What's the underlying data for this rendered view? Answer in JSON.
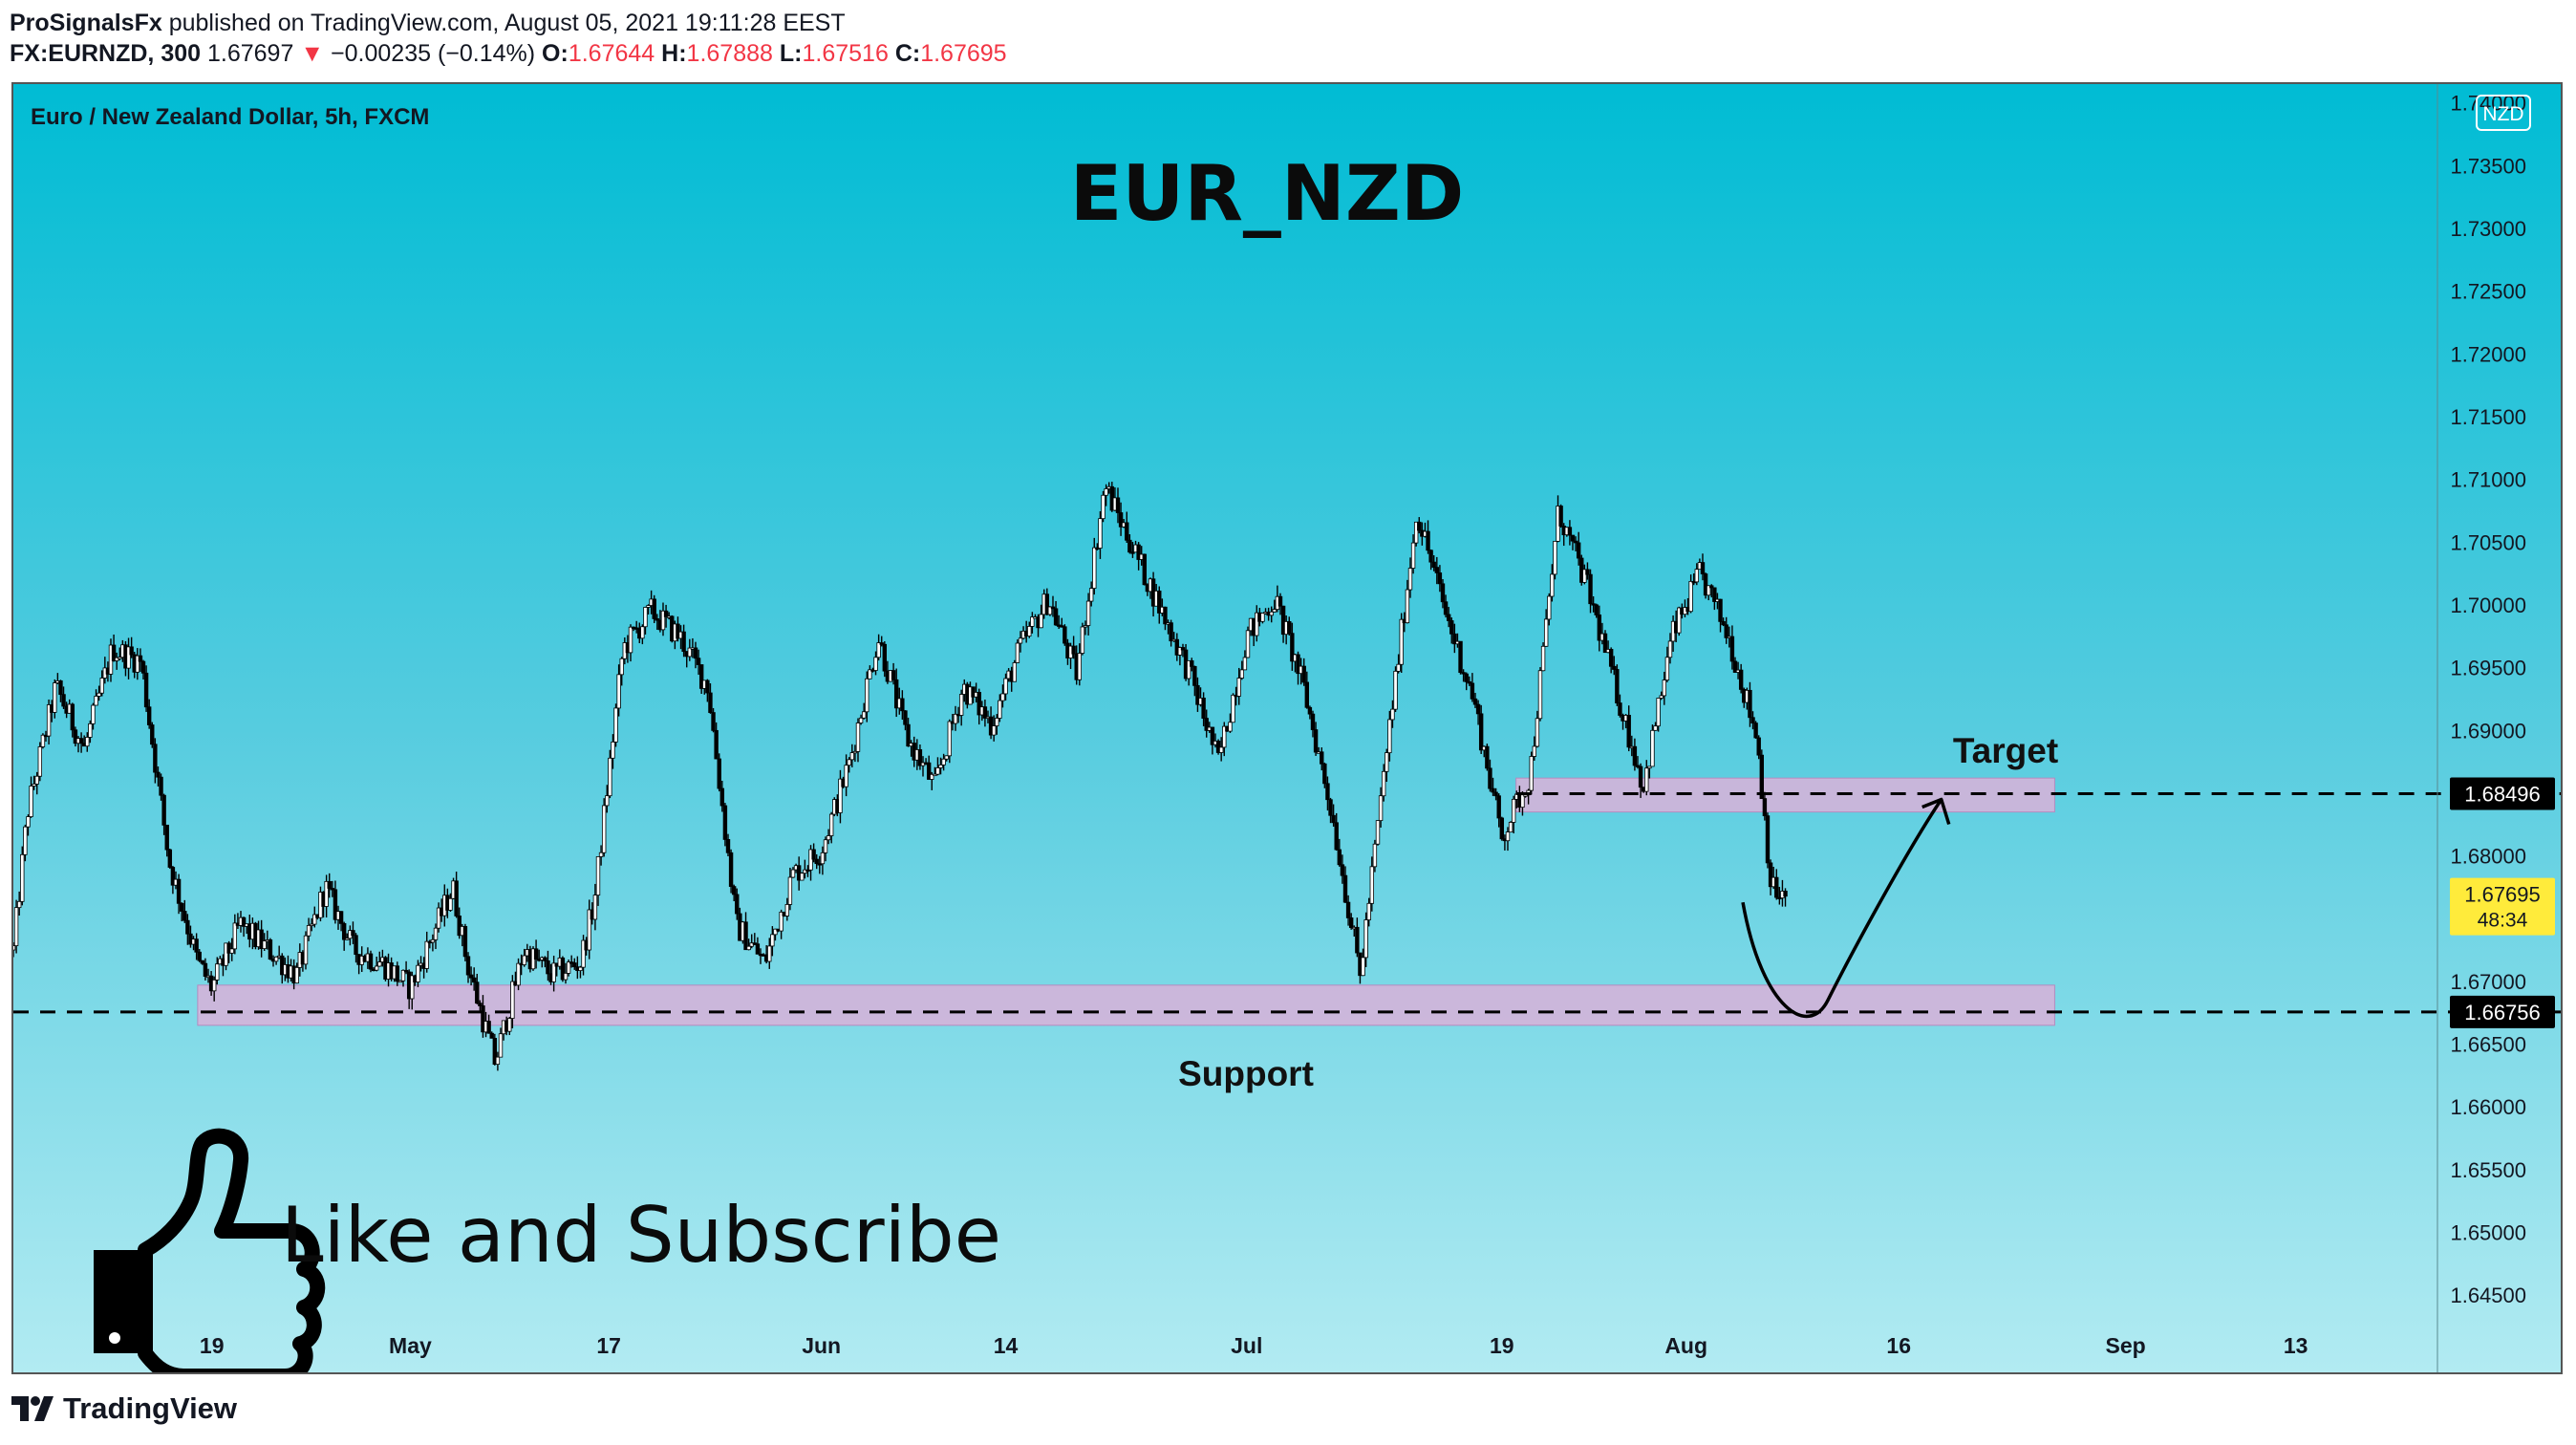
{
  "header": {
    "publisher": "ProSignalsFx",
    "published_text": "published on TradingView.com, August 05, 2021 19:11:28 EEST",
    "symbol": "FX:EURNZD, 300",
    "last": "1.67697",
    "change_arrow": "▼",
    "change": "−0.00235 (−0.14%)",
    "o_label": "O:",
    "o_value": "1.67644",
    "h_label": "H:",
    "h_value": "1.67888",
    "l_label": "L:",
    "l_value": "1.67516",
    "c_label": "C:",
    "c_value": "1.67695"
  },
  "chart": {
    "symbol_title": "Euro / New Zealand Dollar, 5h, FXCM",
    "currency_badge": "NZD",
    "big_title": "EUR_NZD",
    "target_label": "Target",
    "support_label": "Support",
    "promo_text": "Like and Subscribe",
    "target_price": "1.68496",
    "support_price": "1.66756",
    "current_price": "1.67695",
    "countdown": "48:34",
    "colors": {
      "zone_fill": "#d4b2d9",
      "current_price_tag": "#ffeb3b",
      "candle": "#000000",
      "bg_top": "#00bcd4",
      "bg_bottom": "#b2ebf2",
      "down_arrow": "#f23645"
    }
  },
  "footer": {
    "brand": "TradingView",
    "icon": "tradingview-logo-icon"
  },
  "chart_data": {
    "type": "candlestick",
    "title": "EUR_NZD",
    "subtitle": "Euro / New Zealand Dollar, 5h, FXCM",
    "currency": "NZD",
    "y_ticks": [
      "1.74000",
      "1.73500",
      "1.73000",
      "1.72500",
      "1.72000",
      "1.71500",
      "1.71000",
      "1.70500",
      "1.70000",
      "1.69500",
      "1.69000",
      "1.68500",
      "1.68000",
      "1.67500",
      "1.67000",
      "1.66500",
      "1.66000",
      "1.65500",
      "1.65000",
      "1.64500"
    ],
    "y_tick_values": [
      1.74,
      1.735,
      1.73,
      1.725,
      1.72,
      1.715,
      1.71,
      1.705,
      1.7,
      1.695,
      1.69,
      1.685,
      1.68,
      1.675,
      1.67,
      1.665,
      1.66,
      1.655,
      1.65,
      1.645
    ],
    "ylim": [
      1.6425,
      1.7415
    ],
    "x_ticks": [
      "19",
      "May",
      "17",
      "Jun",
      "14",
      "Jul",
      "19",
      "Aug",
      "16",
      "Sep",
      "13"
    ],
    "x_tick_dates": [
      "2021-04-19",
      "2021-05-03",
      "2021-05-17",
      "2021-06-01",
      "2021-06-14",
      "2021-07-01",
      "2021-07-19",
      "2021-08-01",
      "2021-08-16",
      "2021-09-01",
      "2021-09-13"
    ],
    "xlim": [
      "2021-04-05",
      "2021-09-23"
    ],
    "price_path": [
      [
        "2021-04-05",
        1.6725
      ],
      [
        "2021-04-06",
        1.6835
      ],
      [
        "2021-04-08",
        1.6935
      ],
      [
        "2021-04-10",
        1.6885
      ],
      [
        "2021-04-12",
        1.6965
      ],
      [
        "2021-04-14",
        1.6955
      ],
      [
        "2021-04-16",
        1.6795
      ],
      [
        "2021-04-18",
        1.6715
      ],
      [
        "2021-04-19",
        1.6695
      ],
      [
        "2021-04-21",
        1.6745
      ],
      [
        "2021-04-23",
        1.6725
      ],
      [
        "2021-04-25",
        1.6705
      ],
      [
        "2021-04-27",
        1.6775
      ],
      [
        "2021-04-29",
        1.6725
      ],
      [
        "2021-05-01",
        1.6715
      ],
      [
        "2021-05-03",
        1.6695
      ],
      [
        "2021-05-06",
        1.6775
      ],
      [
        "2021-05-07",
        1.6715
      ],
      [
        "2021-05-09",
        1.6635
      ],
      [
        "2021-05-11",
        1.6725
      ],
      [
        "2021-05-13",
        1.6705
      ],
      [
        "2021-05-15",
        1.6715
      ],
      [
        "2021-05-16",
        1.6765
      ],
      [
        "2021-05-18",
        1.6965
      ],
      [
        "2021-05-20",
        1.6995
      ],
      [
        "2021-05-22",
        1.6975
      ],
      [
        "2021-05-24",
        1.6935
      ],
      [
        "2021-05-26",
        1.6745
      ],
      [
        "2021-05-28",
        1.6715
      ],
      [
        "2021-05-30",
        1.6785
      ],
      [
        "2021-06-01",
        1.6805
      ],
      [
        "2021-06-03",
        1.6875
      ],
      [
        "2021-06-05",
        1.6975
      ],
      [
        "2021-06-07",
        1.6895
      ],
      [
        "2021-06-09",
        1.6855
      ],
      [
        "2021-06-11",
        1.6935
      ],
      [
        "2021-06-13",
        1.6905
      ],
      [
        "2021-06-15",
        1.6965
      ],
      [
        "2021-06-17",
        1.7005
      ],
      [
        "2021-06-19",
        1.6945
      ],
      [
        "2021-06-21",
        1.7095
      ],
      [
        "2021-06-23",
        1.7045
      ],
      [
        "2021-06-25",
        1.6995
      ],
      [
        "2021-06-27",
        1.6945
      ],
      [
        "2021-06-29",
        1.6875
      ],
      [
        "2021-07-01",
        1.6975
      ],
      [
        "2021-07-03",
        1.7005
      ],
      [
        "2021-07-05",
        1.6935
      ],
      [
        "2021-07-07",
        1.6835
      ],
      [
        "2021-07-09",
        1.6705
      ],
      [
        "2021-07-11",
        1.6895
      ],
      [
        "2021-07-13",
        1.7075
      ],
      [
        "2021-07-15",
        1.6995
      ],
      [
        "2021-07-17",
        1.6925
      ],
      [
        "2021-07-19",
        1.6815
      ],
      [
        "2021-07-21",
        1.6865
      ],
      [
        "2021-07-23",
        1.7075
      ],
      [
        "2021-07-25",
        1.7015
      ],
      [
        "2021-07-27",
        1.6935
      ],
      [
        "2021-07-29",
        1.6855
      ],
      [
        "2021-07-31",
        1.6975
      ],
      [
        "2021-08-02",
        1.7025
      ],
      [
        "2021-08-04",
        1.6975
      ],
      [
        "2021-08-06",
        1.6895
      ],
      [
        "2021-08-07",
        1.6775
      ],
      [
        "2021-08-08",
        1.6765
      ]
    ],
    "annotations": [
      {
        "type": "zone",
        "label": "Target",
        "price_low": 1.6835,
        "price_high": 1.6862,
        "from": "2021-07-20",
        "to": "2021-08-27"
      },
      {
        "type": "zone",
        "label": "Support",
        "price_low": 1.6665,
        "price_high": 1.6697,
        "from": "2021-04-18",
        "to": "2021-08-27"
      },
      {
        "type": "hline",
        "price": 1.68496,
        "label": "1.68496"
      },
      {
        "type": "hline",
        "price": 1.66756,
        "label": "1.66756"
      },
      {
        "type": "projection_arrow",
        "path": [
          [
            "2021-08-05",
            1.6763
          ],
          [
            "2021-08-11",
            1.6685
          ],
          [
            "2021-08-19",
            1.6845
          ]
        ]
      }
    ],
    "current_price": 1.67695,
    "countdown": "48:34",
    "grid": false,
    "legend": "none"
  }
}
